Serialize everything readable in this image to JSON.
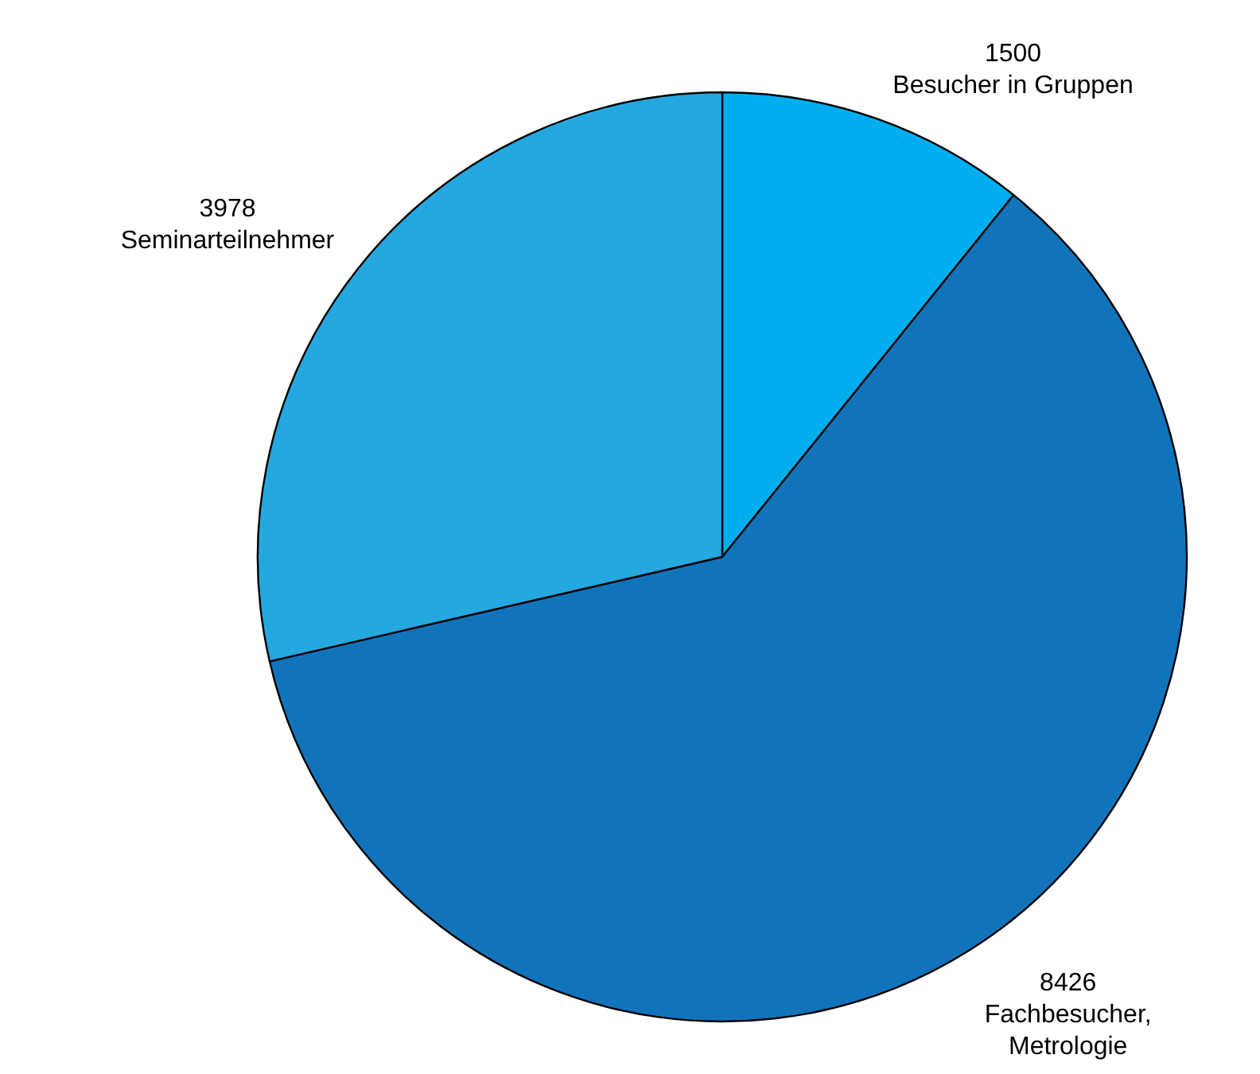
{
  "chart_data": {
    "type": "pie",
    "categories": [
      "Besucher in Gruppen",
      "Fachbesucher, Metrologie",
      "Seminarteilnehmer"
    ],
    "values": [
      1500,
      8426,
      3978
    ],
    "colors": [
      "#00aeef",
      "#1174bb",
      "#25a8e0"
    ],
    "data_labels": true
  }
}
